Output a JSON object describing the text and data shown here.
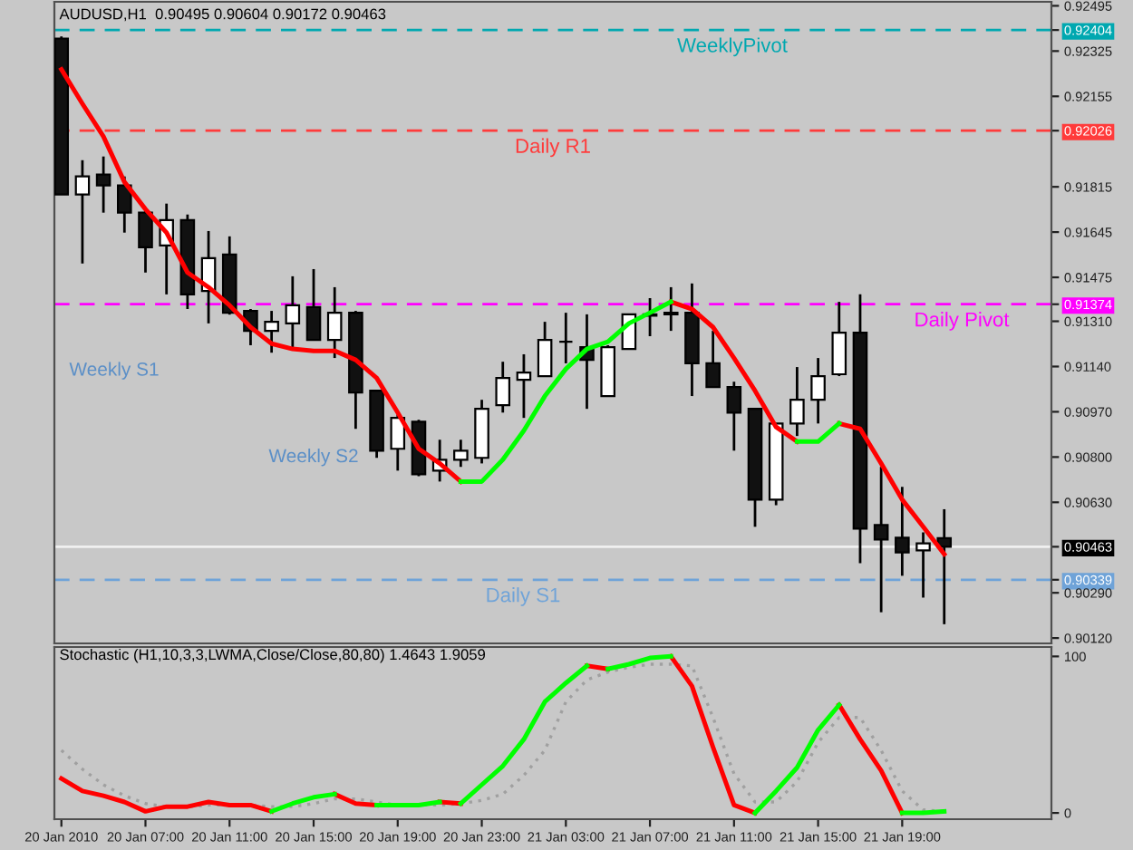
{
  "chart_data": [
    {
      "type": "candlestick",
      "title": "AUDUSD,H1  0.90495 0.90604 0.90172 0.90463",
      "tick_labels": "y",
      "x": [
        "2010-01-20T03:00",
        "2010-01-20T04:00",
        "2010-01-20T05:00",
        "2010-01-20T06:00",
        "2010-01-20T07:00",
        "2010-01-20T08:00",
        "2010-01-20T09:00",
        "2010-01-20T10:00",
        "2010-01-20T11:00",
        "2010-01-20T12:00",
        "2010-01-20T13:00",
        "2010-01-20T14:00",
        "2010-01-20T15:00",
        "2010-01-20T16:00",
        "2010-01-20T17:00",
        "2010-01-20T18:00",
        "2010-01-20T19:00",
        "2010-01-20T20:00",
        "2010-01-20T21:00",
        "2010-01-20T22:00",
        "2010-01-20T23:00",
        "2010-01-21T00:00",
        "2010-01-21T01:00",
        "2010-01-21T02:00",
        "2010-01-21T03:00",
        "2010-01-21T04:00",
        "2010-01-21T05:00",
        "2010-01-21T06:00",
        "2010-01-21T07:00",
        "2010-01-21T08:00",
        "2010-01-21T09:00",
        "2010-01-21T10:00",
        "2010-01-21T11:00",
        "2010-01-21T12:00",
        "2010-01-21T13:00",
        "2010-01-21T14:00",
        "2010-01-21T15:00",
        "2010-01-21T16:00",
        "2010-01-21T17:00",
        "2010-01-21T18:00",
        "2010-01-21T19:00",
        "2010-01-21T20:00",
        "2010-01-21T21:00"
      ],
      "ohlc": [
        [
          0.92372,
          0.9238,
          0.91786,
          0.91786
        ],
        [
          0.91786,
          0.91915,
          0.91527,
          0.91854
        ],
        [
          0.91861,
          0.91929,
          0.91718,
          0.9182
        ],
        [
          0.9182,
          0.91854,
          0.91643,
          0.91718
        ],
        [
          0.91718,
          0.91725,
          0.91493,
          0.91588
        ],
        [
          0.91595,
          0.91752,
          0.91411,
          0.9169
        ],
        [
          0.9169,
          0.91711,
          0.91356,
          0.91411
        ],
        [
          0.91424,
          0.91649,
          0.91302,
          0.91547
        ],
        [
          0.91561,
          0.91629,
          0.91335,
          0.91342
        ],
        [
          0.91349,
          0.91356,
          0.9122,
          0.91274
        ],
        [
          0.91274,
          0.91349,
          0.91192,
          0.91308
        ],
        [
          0.91302,
          0.91479,
          0.91206,
          0.9137
        ],
        [
          0.91363,
          0.91506,
          0.9124,
          0.9124
        ],
        [
          0.9124,
          0.91438,
          0.91172,
          0.91342
        ],
        [
          0.91342,
          0.91349,
          0.90906,
          0.91042
        ],
        [
          0.91049,
          0.91049,
          0.90797,
          0.90824
        ],
        [
          0.90831,
          0.9096,
          0.90749,
          0.90947
        ],
        [
          0.90933,
          0.9094,
          0.90728,
          0.90735
        ],
        [
          0.90749,
          0.90865,
          0.90708,
          0.9079
        ],
        [
          0.9079,
          0.90865,
          0.90763,
          0.90824
        ],
        [
          0.90797,
          0.91015,
          0.90776,
          0.90981
        ],
        [
          0.90995,
          0.91158,
          0.90967,
          0.91097
        ],
        [
          0.9109,
          0.91186,
          0.90947,
          0.91117
        ],
        [
          0.91104,
          0.91308,
          0.91104,
          0.9124
        ],
        [
          0.91233,
          0.91342,
          0.91152,
          0.91233
        ],
        [
          0.91213,
          0.91336,
          0.90981,
          0.91165
        ],
        [
          0.91029,
          0.9122,
          0.91029,
          0.91213
        ],
        [
          0.91206,
          0.91336,
          0.91206,
          0.91336
        ],
        [
          0.91336,
          0.91397,
          0.91254,
          0.91331
        ],
        [
          0.91336,
          0.91438,
          0.91274,
          0.91342
        ],
        [
          0.91342,
          0.91452,
          0.91029,
          0.91152
        ],
        [
          0.91152,
          0.91274,
          0.91063,
          0.91063
        ],
        [
          0.91063,
          0.91083,
          0.90824,
          0.90967
        ],
        [
          0.90981,
          0.90981,
          0.90538,
          0.9064
        ],
        [
          0.9064,
          0.90926,
          0.90619,
          0.90926
        ],
        [
          0.90926,
          0.91138,
          0.90879,
          0.91015
        ],
        [
          0.91015,
          0.91172,
          0.90926,
          0.91104
        ],
        [
          0.91111,
          0.91383,
          0.91104,
          0.91267
        ],
        [
          0.91267,
          0.91411,
          0.90401,
          0.90531
        ],
        [
          0.90545,
          0.90763,
          0.90217,
          0.9049
        ],
        [
          0.90497,
          0.90688,
          0.90354,
          0.90442
        ],
        [
          0.90449,
          0.90517,
          0.90272,
          0.90476
        ],
        [
          0.90495,
          0.90604,
          0.90172,
          0.90463
        ]
      ],
      "series": [
        {
          "type": "line",
          "color": "#ff0000",
          "values": [
            0.92256,
            0.92127,
            0.92004,
            0.91833,
            0.91731,
            0.91643,
            0.91493,
            0.91438,
            0.9137,
            0.91288,
            0.91226,
            0.91206,
            0.91199,
            0.91199,
            0.91165,
            0.91097,
            0.90967,
            0.90831,
            0.90776,
            0.90708,
            null,
            null,
            null,
            null,
            null,
            null,
            null,
            null,
            null,
            0.91383,
            0.91356,
            0.91288,
            0.91172,
            0.91049,
            0.90913,
            0.90858,
            null,
            0.90926,
            0.90906,
            0.90776,
            0.9064,
            0.90538,
            0.90435
          ]
        },
        {
          "type": "line",
          "color": "#00ff00",
          "values": [
            null,
            null,
            null,
            null,
            null,
            null,
            null,
            null,
            null,
            null,
            null,
            null,
            null,
            null,
            null,
            null,
            null,
            null,
            null,
            0.90708,
            0.90708,
            0.9079,
            0.90899,
            0.91029,
            0.91131,
            0.91206,
            0.91233,
            0.91302,
            0.91342,
            0.91383,
            null,
            null,
            null,
            null,
            null,
            0.90858,
            0.90858,
            0.90926,
            null,
            null,
            null,
            null,
            null
          ]
        }
      ],
      "xlim": [
        "2010-01-20T02:40",
        "2010-01-22T02:06"
      ],
      "ylim": [
        0.901,
        0.9251
      ],
      "yticks": [
        0.92495,
        0.92404,
        0.92026,
        0.91374,
        0.90463,
        0.90339,
        0.92325,
        0.92155,
        0.91815,
        0.91645,
        0.91475,
        {
          "value": 0.9131,
          "label": "0.91310"
        },
        {
          "value": 0.9114,
          "label": "0.91140"
        },
        {
          "value": 0.9097,
          "label": "0.90970"
        },
        {
          "value": 0.908,
          "label": "0.90800"
        },
        {
          "value": 0.9063,
          "label": "0.90630"
        },
        {
          "value": 0.9029,
          "label": "0.90290"
        },
        {
          "value": 0.9012,
          "label": "0.90120"
        }
      ],
      "ref_lines": [
        {
          "axis": "y",
          "value": 0.92404,
          "label": "WeeklyPivot",
          "color": "#00a8b0",
          "line_style": "dashed"
        },
        {
          "axis": "y",
          "value": 0.92026,
          "label": "Daily R1",
          "color": "#ff3b3b",
          "line_style": "dashed"
        },
        {
          "axis": "y",
          "value": 0.91374,
          "label": "Daily Pivot",
          "color": "#ff00ff",
          "line_style": "dashed"
        },
        {
          "axis": "y",
          "value": 0.90339,
          "label": "Daily S1",
          "color": "#6fa3d8",
          "line_style": "dashed"
        },
        {
          "axis": "y",
          "value": 0.90463,
          "label": null,
          "color": "#f0f0f0",
          "line_style": "solid"
        }
      ],
      "annotations": [
        "Weekly S1",
        "Weekly S2"
      ]
    },
    {
      "type": "line",
      "title": "Stochastic (H1,10,3,3,LWMA,Close/Close,80,80) 1.4643 1.9059",
      "x": [
        "2010-01-20T03:00",
        "2010-01-20T04:00",
        "2010-01-20T05:00",
        "2010-01-20T06:00",
        "2010-01-20T07:00",
        "2010-01-20T08:00",
        "2010-01-20T09:00",
        "2010-01-20T10:00",
        "2010-01-20T11:00",
        "2010-01-20T12:00",
        "2010-01-20T13:00",
        "2010-01-20T14:00",
        "2010-01-20T15:00",
        "2010-01-20T16:00",
        "2010-01-20T17:00",
        "2010-01-20T18:00",
        "2010-01-20T19:00",
        "2010-01-20T20:00",
        "2010-01-20T21:00",
        "2010-01-20T22:00",
        "2010-01-20T23:00",
        "2010-01-21T00:00",
        "2010-01-21T01:00",
        "2010-01-21T02:00",
        "2010-01-21T03:00",
        "2010-01-21T04:00",
        "2010-01-21T05:00",
        "2010-01-21T06:00",
        "2010-01-21T07:00",
        "2010-01-21T08:00",
        "2010-01-21T09:00",
        "2010-01-21T10:00",
        "2010-01-21T11:00",
        "2010-01-21T12:00",
        "2010-01-21T13:00",
        "2010-01-21T14:00",
        "2010-01-21T15:00",
        "2010-01-21T16:00",
        "2010-01-21T17:00",
        "2010-01-21T18:00",
        "2010-01-21T19:00",
        "2010-01-21T20:00",
        "2010-01-21T21:00"
      ],
      "series": [
        {
          "color": "#a0a0a0",
          "line_style": "dotted",
          "values": [
            40,
            28,
            18,
            11,
            6,
            4,
            4,
            5,
            5,
            5,
            4,
            4,
            6,
            9,
            9,
            7,
            5,
            5,
            5,
            6,
            8,
            12,
            24,
            40,
            71,
            85,
            90,
            93,
            95,
            95,
            94,
            61,
            25,
            7,
            7,
            20,
            45,
            61,
            61,
            40,
            14,
            2,
            1
          ]
        },
        {
          "color": "#ff0000",
          "values": [
            22,
            14,
            11,
            7,
            1,
            4,
            4,
            7,
            5,
            5,
            1,
            null,
            null,
            12,
            6,
            5,
            null,
            null,
            7,
            6,
            null,
            null,
            null,
            null,
            null,
            94,
            92,
            null,
            null,
            100,
            81,
            42,
            5,
            0,
            null,
            null,
            null,
            69,
            47,
            27,
            0,
            null,
            null
          ]
        },
        {
          "color": "#00ff00",
          "values": [
            null,
            null,
            null,
            null,
            null,
            null,
            null,
            null,
            null,
            null,
            1,
            6,
            10,
            12,
            null,
            null,
            null,
            null,
            null,
            6,
            18,
            30,
            47,
            71,
            83,
            94,
            null,
            null,
            null,
            null,
            null,
            null,
            null,
            0,
            14,
            29,
            53,
            69,
            null,
            null,
            null,
            null,
            null
          ]
        },
        {
          "color": "#00ff00",
          "values": [
            null,
            null,
            null,
            null,
            null,
            null,
            null,
            null,
            null,
            null,
            null,
            null,
            null,
            null,
            null,
            5,
            5,
            5,
            7,
            null,
            null,
            null,
            null,
            null,
            null,
            null,
            92,
            95,
            99,
            100,
            null,
            null,
            null,
            null,
            null,
            null,
            null,
            null,
            null,
            null,
            0,
            0,
            1
          ]
        }
      ],
      "xlim": [
        "2010-01-20T02:40",
        "2010-01-22T02:06"
      ],
      "xticks": [
        {
          "value": "2010-01-20T03:00",
          "label": "20 Jan 2010"
        },
        {
          "value": "2010-01-20T07:00",
          "label": "20 Jan 07:00"
        },
        {
          "value": "2010-01-20T11:00",
          "label": "20 Jan 11:00"
        },
        {
          "value": "2010-01-20T15:00",
          "label": "20 Jan 15:00"
        },
        {
          "value": "2010-01-20T19:00",
          "label": "20 Jan 19:00"
        },
        {
          "value": "2010-01-20T23:00",
          "label": "20 Jan 23:00"
        },
        {
          "value": "2010-01-21T03:00",
          "label": "21 Jan 03:00"
        },
        {
          "value": "2010-01-21T07:00",
          "label": "21 Jan 07:00"
        },
        {
          "value": "2010-01-21T11:00",
          "label": "21 Jan 11:00"
        },
        {
          "value": "2010-01-21T15:00",
          "label": "21 Jan 15:00"
        },
        {
          "value": "2010-01-21T19:00",
          "label": "21 Jan 19:00"
        }
      ],
      "ylim": [
        -4,
        106
      ],
      "yticks": [
        0,
        100
      ]
    }
  ]
}
